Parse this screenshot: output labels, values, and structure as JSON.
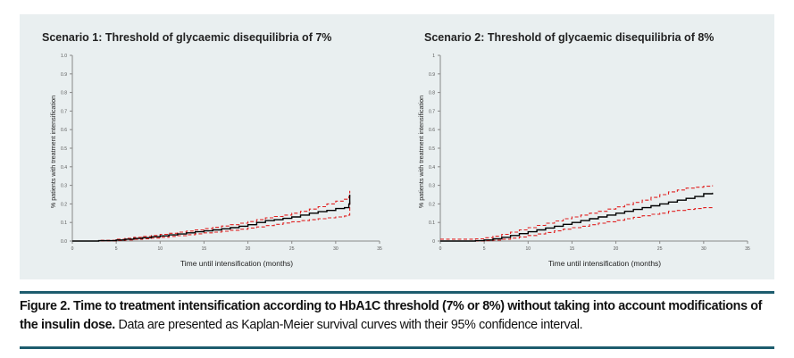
{
  "caption": {
    "bold": "Figure 2. Time to treatment intensification according to HbA1C threshold (7% or 8%) without taking into account modifications of the insulin dose.",
    "normal": " Data are presented as Kaplan-Meier survival curves with their 95% confidence interval."
  },
  "colors": {
    "panel_bg": "#e9eff0",
    "estimate": "#000000",
    "ci": "#e02020",
    "rule": "#1d5c6e"
  },
  "chart_data": [
    {
      "type": "line",
      "title": "Scenario 1: Threshold of glycaemic disequilibria of 7%",
      "xlabel": "Time until intensification (months)",
      "ylabel": "% patients with treatment intensification",
      "xlim": [
        0,
        35
      ],
      "ylim": [
        0,
        1.0
      ],
      "xticks": [
        0,
        5,
        10,
        15,
        20,
        25,
        30,
        35
      ],
      "yticks": [
        0.0,
        0.1,
        0.2,
        0.3,
        0.4,
        0.5,
        0.6,
        0.7,
        0.8,
        0.9,
        1.0
      ],
      "ytick_labels": [
        "0.0",
        "0.1",
        "0.2",
        "0.3",
        "0.4",
        "0.5",
        "0.6",
        "0.7",
        "0.8",
        "0.9",
        "1.0"
      ],
      "grid": false,
      "series": [
        {
          "style": "estimate",
          "x": [
            0,
            3,
            5,
            6,
            7,
            8,
            9,
            10,
            11,
            12,
            13,
            14,
            15,
            16,
            17,
            18,
            19,
            20,
            21,
            22,
            23,
            24,
            25,
            26,
            27,
            28,
            29,
            30,
            31,
            31.5,
            31.6
          ],
          "y": [
            0,
            0.002,
            0.006,
            0.01,
            0.014,
            0.018,
            0.023,
            0.028,
            0.033,
            0.038,
            0.044,
            0.05,
            0.055,
            0.06,
            0.066,
            0.072,
            0.08,
            0.088,
            0.1,
            0.11,
            0.115,
            0.122,
            0.13,
            0.14,
            0.15,
            0.158,
            0.165,
            0.175,
            0.18,
            0.2,
            0.25
          ]
        },
        {
          "style": "ci",
          "x": [
            0,
            3,
            5,
            6,
            7,
            8,
            9,
            10,
            11,
            12,
            13,
            14,
            15,
            16,
            17,
            18,
            19,
            20,
            21,
            22,
            23,
            24,
            25,
            26,
            27,
            28,
            29,
            30,
            31,
            31.5,
            31.6
          ],
          "y": [
            0,
            0.004,
            0.01,
            0.015,
            0.02,
            0.025,
            0.03,
            0.036,
            0.042,
            0.048,
            0.054,
            0.06,
            0.067,
            0.074,
            0.081,
            0.088,
            0.096,
            0.105,
            0.115,
            0.125,
            0.132,
            0.14,
            0.15,
            0.16,
            0.172,
            0.185,
            0.2,
            0.215,
            0.225,
            0.24,
            0.27
          ]
        },
        {
          "style": "ci",
          "x": [
            0,
            3,
            5,
            6,
            7,
            8,
            9,
            10,
            11,
            12,
            13,
            14,
            15,
            16,
            17,
            18,
            19,
            20,
            21,
            22,
            23,
            24,
            25,
            26,
            27,
            28,
            29,
            30,
            31,
            31.5,
            31.6
          ],
          "y": [
            0,
            0.001,
            0.003,
            0.006,
            0.009,
            0.012,
            0.016,
            0.02,
            0.025,
            0.029,
            0.034,
            0.039,
            0.044,
            0.048,
            0.053,
            0.058,
            0.064,
            0.07,
            0.076,
            0.083,
            0.09,
            0.097,
            0.104,
            0.11,
            0.115,
            0.12,
            0.125,
            0.13,
            0.135,
            0.14,
            0.22
          ]
        }
      ]
    },
    {
      "type": "line",
      "title": "Scenario 2: Threshold of glycaemic disequilibria of 8%",
      "xlabel": "Time until intensification (months)",
      "ylabel": "% patients with treatment intensification",
      "xlim": [
        0,
        35
      ],
      "ylim": [
        0,
        1
      ],
      "xticks": [
        0,
        5,
        10,
        15,
        20,
        25,
        30,
        35
      ],
      "yticks": [
        0,
        0.1,
        0.2,
        0.3,
        0.4,
        0.5,
        0.6,
        0.7,
        0.8,
        0.9,
        1
      ],
      "ytick_labels": [
        "0",
        "0.1",
        "0.2",
        "0.3",
        "0.4",
        "0.5",
        "0.6",
        "0.7",
        "0.8",
        "0.9",
        "1"
      ],
      "grid": false,
      "series": [
        {
          "style": "estimate",
          "x": [
            0,
            4,
            5,
            6,
            7,
            8,
            9,
            10,
            11,
            12,
            13,
            14,
            15,
            16,
            17,
            18,
            19,
            20,
            21,
            22,
            23,
            24,
            25,
            26,
            27,
            28,
            29,
            30,
            31
          ],
          "y": [
            0,
            0.002,
            0.006,
            0.012,
            0.02,
            0.03,
            0.04,
            0.05,
            0.06,
            0.07,
            0.08,
            0.09,
            0.1,
            0.11,
            0.12,
            0.13,
            0.14,
            0.15,
            0.16,
            0.17,
            0.18,
            0.19,
            0.2,
            0.21,
            0.22,
            0.23,
            0.24,
            0.255,
            0.26
          ]
        },
        {
          "style": "ci",
          "x": [
            0,
            4,
            5,
            6,
            7,
            8,
            9,
            10,
            11,
            12,
            13,
            14,
            15,
            16,
            17,
            18,
            19,
            20,
            21,
            22,
            23,
            24,
            25,
            26,
            27,
            28,
            29,
            30,
            31
          ],
          "y": [
            0.01,
            0.012,
            0.018,
            0.026,
            0.036,
            0.048,
            0.06,
            0.072,
            0.084,
            0.096,
            0.108,
            0.12,
            0.13,
            0.14,
            0.15,
            0.16,
            0.172,
            0.184,
            0.196,
            0.208,
            0.22,
            0.235,
            0.25,
            0.265,
            0.275,
            0.285,
            0.29,
            0.295,
            0.3
          ]
        },
        {
          "style": "ci",
          "x": [
            0,
            4,
            5,
            6,
            7,
            8,
            9,
            10,
            11,
            12,
            13,
            14,
            15,
            16,
            17,
            18,
            19,
            20,
            21,
            22,
            23,
            24,
            25,
            26,
            27,
            28,
            29,
            30,
            31
          ],
          "y": [
            0,
            0,
            0.002,
            0.005,
            0.01,
            0.016,
            0.022,
            0.03,
            0.038,
            0.046,
            0.055,
            0.064,
            0.072,
            0.08,
            0.088,
            0.096,
            0.104,
            0.112,
            0.12,
            0.128,
            0.136,
            0.144,
            0.15,
            0.16,
            0.165,
            0.17,
            0.175,
            0.18,
            0.185
          ]
        }
      ]
    }
  ]
}
